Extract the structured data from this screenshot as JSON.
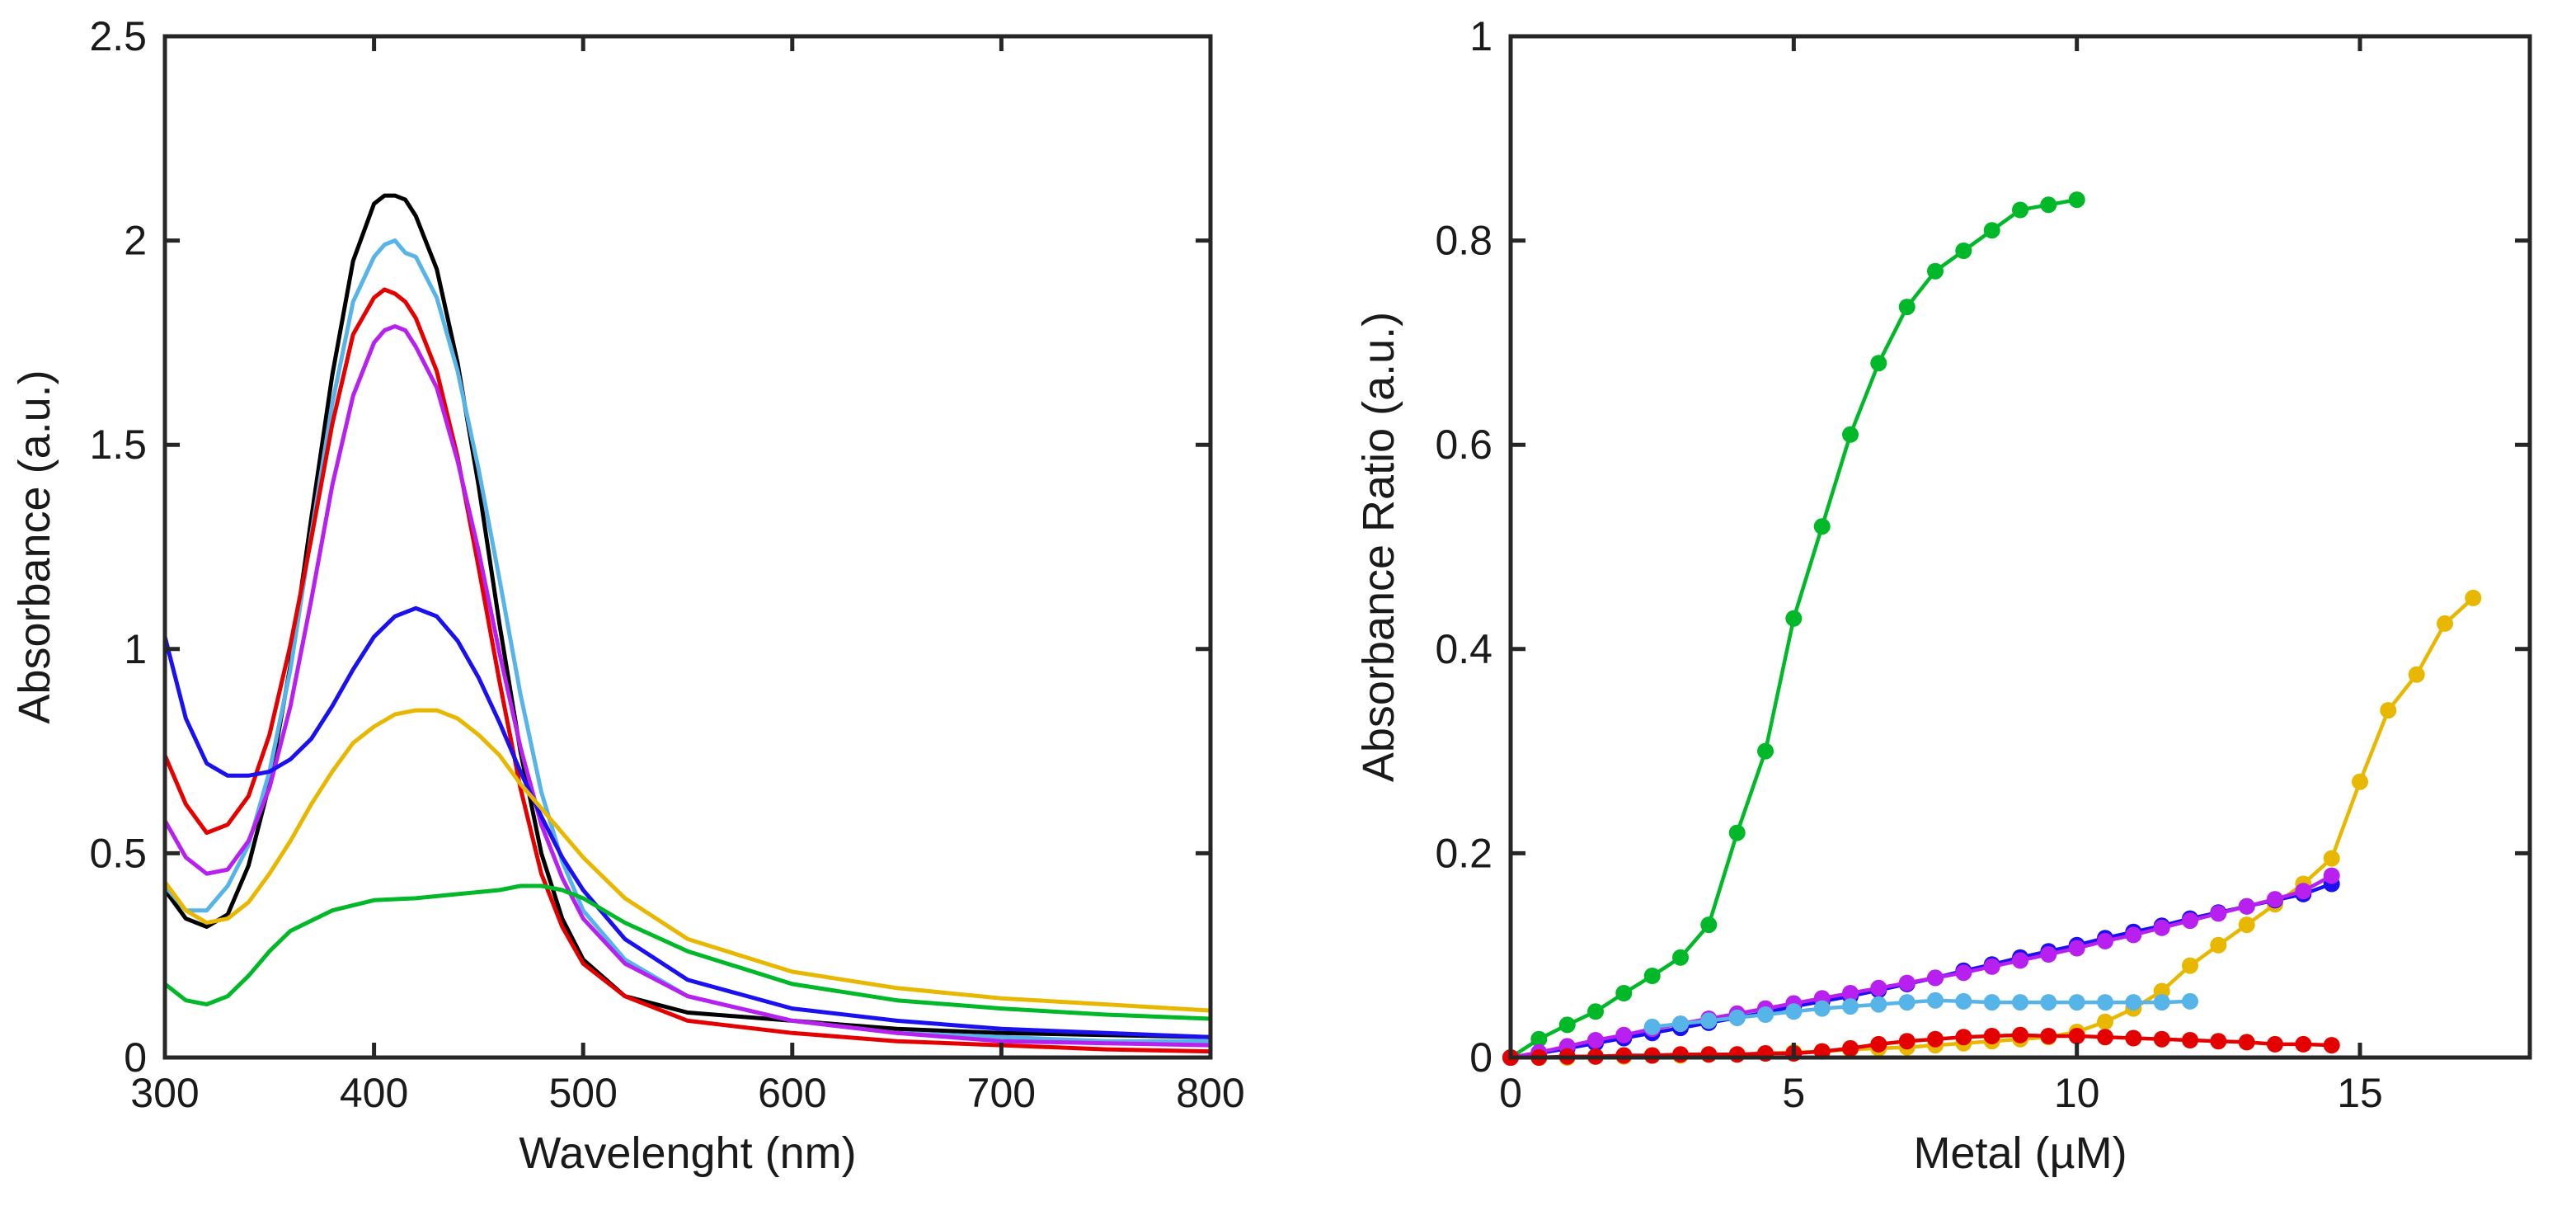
{
  "chart_data": [
    {
      "type": "line",
      "xlabel": "Wavelenght (nm)",
      "ylabel": "Absorbance (a.u.)",
      "xlim": [
        300,
        800
      ],
      "ylim": [
        0,
        2.5
      ],
      "xticks": [
        300,
        400,
        500,
        600,
        700,
        800
      ],
      "xtick_labels": [
        "300",
        "400",
        "500",
        "600",
        "700",
        "800"
      ],
      "yticks": [
        0,
        0.5,
        1,
        1.5,
        2,
        2.5
      ],
      "ytick_labels": [
        "0",
        "0.5",
        "1",
        "1.5",
        "2",
        "2.5"
      ],
      "grid": false,
      "series": [
        {
          "name": "black",
          "color": "#000000",
          "x": [
            300,
            310,
            320,
            330,
            340,
            350,
            360,
            370,
            380,
            390,
            400,
            405,
            410,
            415,
            420,
            430,
            440,
            450,
            460,
            470,
            480,
            490,
            500,
            520,
            550,
            600,
            650,
            700,
            750,
            800
          ],
          "y": [
            0.41,
            0.34,
            0.32,
            0.35,
            0.47,
            0.67,
            0.96,
            1.32,
            1.67,
            1.95,
            2.09,
            2.11,
            2.11,
            2.1,
            2.06,
            1.93,
            1.7,
            1.4,
            1.06,
            0.75,
            0.5,
            0.34,
            0.24,
            0.15,
            0.11,
            0.09,
            0.07,
            0.06,
            0.055,
            0.05
          ]
        },
        {
          "name": "sky blue",
          "color": "#56B4E9",
          "x": [
            300,
            310,
            320,
            330,
            340,
            350,
            360,
            370,
            380,
            390,
            400,
            405,
            410,
            415,
            420,
            430,
            440,
            450,
            460,
            470,
            480,
            490,
            500,
            520,
            550,
            600,
            650,
            700,
            750,
            800
          ],
          "y": [
            0.42,
            0.36,
            0.36,
            0.42,
            0.52,
            0.7,
            0.95,
            1.28,
            1.6,
            1.85,
            1.96,
            1.99,
            2.0,
            1.97,
            1.96,
            1.86,
            1.68,
            1.44,
            1.17,
            0.89,
            0.65,
            0.48,
            0.36,
            0.24,
            0.15,
            0.09,
            0.06,
            0.05,
            0.04,
            0.04
          ]
        },
        {
          "name": "red",
          "color": "#E50000",
          "x": [
            300,
            310,
            320,
            330,
            340,
            350,
            360,
            370,
            380,
            390,
            400,
            405,
            410,
            415,
            420,
            430,
            440,
            450,
            460,
            470,
            480,
            490,
            500,
            520,
            550,
            600,
            650,
            700,
            750,
            800
          ],
          "y": [
            0.74,
            0.62,
            0.55,
            0.57,
            0.64,
            0.79,
            1.01,
            1.27,
            1.55,
            1.77,
            1.86,
            1.88,
            1.87,
            1.85,
            1.81,
            1.68,
            1.47,
            1.2,
            0.92,
            0.66,
            0.45,
            0.32,
            0.23,
            0.15,
            0.09,
            0.06,
            0.04,
            0.03,
            0.02,
            0.015
          ]
        },
        {
          "name": "magenta",
          "color": "#B820F0",
          "x": [
            300,
            310,
            320,
            330,
            340,
            350,
            360,
            370,
            380,
            390,
            400,
            405,
            410,
            415,
            420,
            430,
            440,
            450,
            460,
            470,
            480,
            490,
            500,
            520,
            550,
            600,
            650,
            700,
            750,
            800
          ],
          "y": [
            0.58,
            0.49,
            0.45,
            0.46,
            0.53,
            0.66,
            0.86,
            1.12,
            1.4,
            1.62,
            1.75,
            1.78,
            1.79,
            1.78,
            1.74,
            1.64,
            1.46,
            1.24,
            0.99,
            0.76,
            0.57,
            0.44,
            0.34,
            0.23,
            0.15,
            0.09,
            0.06,
            0.04,
            0.035,
            0.03
          ]
        },
        {
          "name": "blue",
          "color": "#1A10F0",
          "x": [
            300,
            310,
            320,
            330,
            340,
            350,
            360,
            370,
            380,
            390,
            400,
            410,
            420,
            430,
            440,
            450,
            460,
            470,
            480,
            490,
            500,
            520,
            550,
            600,
            650,
            700,
            750,
            800
          ],
          "y": [
            1.03,
            0.83,
            0.72,
            0.69,
            0.69,
            0.7,
            0.73,
            0.78,
            0.86,
            0.95,
            1.03,
            1.08,
            1.1,
            1.08,
            1.02,
            0.93,
            0.82,
            0.7,
            0.59,
            0.49,
            0.41,
            0.29,
            0.19,
            0.12,
            0.09,
            0.07,
            0.06,
            0.05
          ]
        },
        {
          "name": "yellow",
          "color": "#E8B800",
          "x": [
            300,
            310,
            320,
            330,
            340,
            350,
            360,
            370,
            380,
            390,
            400,
            410,
            420,
            430,
            440,
            450,
            460,
            470,
            480,
            490,
            500,
            520,
            550,
            600,
            650,
            700,
            750,
            800
          ],
          "y": [
            0.43,
            0.36,
            0.33,
            0.34,
            0.38,
            0.45,
            0.53,
            0.62,
            0.7,
            0.77,
            0.81,
            0.84,
            0.85,
            0.85,
            0.83,
            0.79,
            0.74,
            0.67,
            0.61,
            0.55,
            0.49,
            0.39,
            0.29,
            0.21,
            0.17,
            0.145,
            0.13,
            0.115
          ]
        },
        {
          "name": "green",
          "color": "#00B828",
          "x": [
            300,
            310,
            320,
            330,
            340,
            350,
            360,
            380,
            400,
            420,
            440,
            460,
            470,
            480,
            490,
            500,
            520,
            550,
            600,
            650,
            700,
            750,
            800
          ],
          "y": [
            0.18,
            0.14,
            0.13,
            0.15,
            0.2,
            0.26,
            0.31,
            0.36,
            0.385,
            0.39,
            0.4,
            0.41,
            0.42,
            0.42,
            0.41,
            0.39,
            0.33,
            0.26,
            0.18,
            0.14,
            0.12,
            0.105,
            0.095
          ]
        }
      ]
    },
    {
      "type": "line",
      "markers": true,
      "xlabel": "Metal (µM)",
      "ylabel": "Absorbance Ratio (a.u.)",
      "xlim": [
        0,
        18
      ],
      "ylim": [
        0,
        1
      ],
      "xticks": [
        0,
        5,
        10,
        15
      ],
      "xtick_labels": [
        "0",
        "5",
        "10",
        "15"
      ],
      "yticks": [
        0,
        0.2,
        0.4,
        0.6,
        0.8,
        1
      ],
      "ytick_labels": [
        "0",
        "0.2",
        "0.4",
        "0.6",
        "0.8",
        "1"
      ],
      "grid": false,
      "series": [
        {
          "name": "green",
          "color": "#00B828",
          "x": [
            0,
            0.5,
            1,
            1.5,
            2,
            2.5,
            3,
            3.5,
            4,
            4.5,
            5,
            5.5,
            6,
            6.5,
            7,
            7.5,
            8,
            8.5,
            9,
            9.5,
            10
          ],
          "y": [
            0,
            0.018,
            0.032,
            0.045,
            0.063,
            0.08,
            0.098,
            0.13,
            0.22,
            0.3,
            0.43,
            0.52,
            0.61,
            0.68,
            0.735,
            0.77,
            0.79,
            0.81,
            0.83,
            0.835,
            0.84
          ]
        },
        {
          "name": "yellow",
          "color": "#E8B800",
          "x": [
            0,
            0.5,
            1,
            1.5,
            2,
            2.5,
            3,
            3.5,
            4,
            4.5,
            5,
            5.5,
            6,
            6.5,
            7,
            7.5,
            8,
            8.5,
            9,
            9.5,
            10,
            10.5,
            11,
            11.5,
            12,
            12.5,
            13,
            13.5,
            14,
            14.5,
            15,
            15.5,
            16,
            16.5,
            17
          ],
          "y": [
            0,
            0,
            0,
            0.001,
            0.001,
            0.002,
            0.002,
            0.003,
            0.003,
            0.004,
            0.005,
            0.006,
            0.008,
            0.009,
            0.01,
            0.012,
            0.014,
            0.016,
            0.018,
            0.02,
            0.025,
            0.035,
            0.048,
            0.065,
            0.09,
            0.11,
            0.13,
            0.15,
            0.17,
            0.195,
            0.27,
            0.34,
            0.375,
            0.425,
            0.45
          ]
        },
        {
          "name": "blue",
          "color": "#1A10F0",
          "x": [
            0,
            0.5,
            1,
            1.5,
            2,
            2.5,
            3,
            3.5,
            4,
            4.5,
            5,
            5.5,
            6,
            6.5,
            7,
            7.5,
            8,
            8.5,
            9,
            9.5,
            10,
            10.5,
            11,
            11.5,
            12,
            12.5,
            13,
            13.5,
            14,
            14.5
          ],
          "y": [
            0,
            0.004,
            0.009,
            0.014,
            0.019,
            0.024,
            0.029,
            0.034,
            0.039,
            0.044,
            0.05,
            0.055,
            0.06,
            0.066,
            0.072,
            0.078,
            0.085,
            0.091,
            0.098,
            0.104,
            0.11,
            0.117,
            0.123,
            0.129,
            0.136,
            0.142,
            0.148,
            0.154,
            0.16,
            0.17
          ]
        },
        {
          "name": "magenta",
          "color": "#B820F0",
          "x": [
            0,
            0.5,
            1,
            1.5,
            2,
            2.5,
            3,
            3.5,
            4,
            4.5,
            5,
            5.5,
            6,
            6.5,
            7,
            7.5,
            8,
            8.5,
            9,
            9.5,
            10,
            10.5,
            11,
            11.5,
            12,
            12.5,
            13,
            13.5,
            14,
            14.5
          ],
          "y": [
            0,
            0.005,
            0.011,
            0.017,
            0.022,
            0.028,
            0.033,
            0.038,
            0.043,
            0.048,
            0.053,
            0.058,
            0.063,
            0.068,
            0.073,
            0.078,
            0.083,
            0.089,
            0.095,
            0.101,
            0.107,
            0.114,
            0.12,
            0.127,
            0.134,
            0.141,
            0.148,
            0.155,
            0.163,
            0.178
          ]
        },
        {
          "name": "sky blue",
          "color": "#56B4E9",
          "x": [
            2.5,
            3,
            3.5,
            4,
            4.5,
            5,
            5.5,
            6,
            6.5,
            7,
            7.5,
            8,
            8.5,
            9,
            9.5,
            10,
            10.5,
            11,
            11.5,
            12
          ],
          "y": [
            0.03,
            0.033,
            0.036,
            0.039,
            0.042,
            0.045,
            0.048,
            0.05,
            0.052,
            0.054,
            0.056,
            0.055,
            0.054,
            0.054,
            0.054,
            0.054,
            0.054,
            0.054,
            0.054,
            0.055
          ]
        },
        {
          "name": "red",
          "color": "#E50000",
          "x": [
            0,
            0.5,
            1,
            1.5,
            2,
            2.5,
            3,
            3.5,
            4,
            4.5,
            5,
            5.5,
            6,
            6.5,
            7,
            7.5,
            8,
            8.5,
            9,
            9.5,
            10,
            10.5,
            11,
            11.5,
            12,
            12.5,
            13,
            13.5,
            14,
            14.5
          ],
          "y": [
            0,
            0,
            0.001,
            0.001,
            0.002,
            0.002,
            0.003,
            0.003,
            0.003,
            0.004,
            0.004,
            0.006,
            0.009,
            0.013,
            0.016,
            0.018,
            0.02,
            0.021,
            0.022,
            0.021,
            0.021,
            0.02,
            0.019,
            0.018,
            0.017,
            0.016,
            0.015,
            0.013,
            0.013,
            0.012
          ]
        }
      ]
    }
  ]
}
